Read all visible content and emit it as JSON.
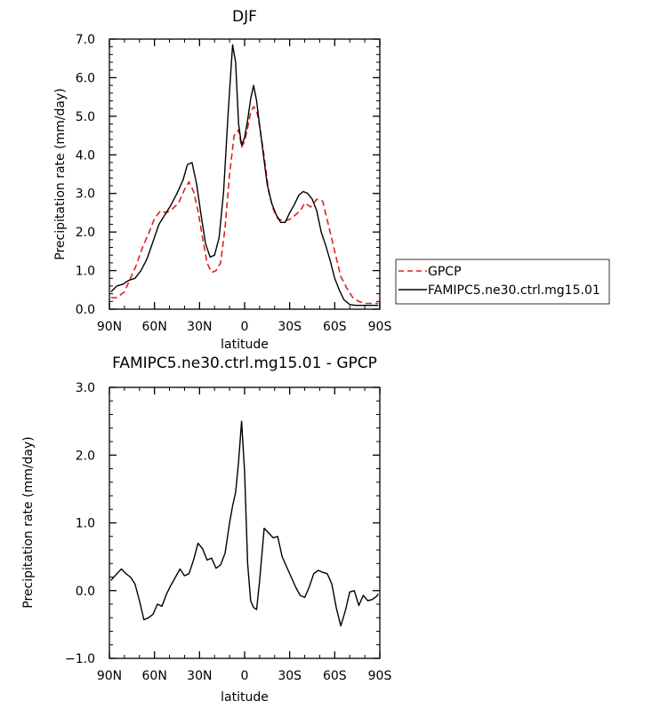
{
  "chart_data": [
    {
      "type": "line",
      "title": "DJF",
      "xlabel": "latitude",
      "ylabel": "Precipitation rate (mm/day)",
      "xlim": [
        90,
        -90
      ],
      "ylim": [
        0,
        7
      ],
      "x_ticks": [
        90,
        60,
        30,
        0,
        -30,
        -60,
        -90
      ],
      "x_tick_labels": [
        "90N",
        "60N",
        "30N",
        "0",
        "30S",
        "60S",
        "90S"
      ],
      "y_ticks": [
        0,
        1,
        2,
        3,
        4,
        5,
        6,
        7
      ],
      "y_tick_labels": [
        "0.0",
        "1.0",
        "2.0",
        "3.0",
        "4.0",
        "5.0",
        "6.0",
        "7.0"
      ],
      "legend_position": "right",
      "series": [
        {
          "name": "GPCP",
          "color": "#e02020",
          "dash": "dashed",
          "x": [
            89,
            85,
            80,
            76,
            72,
            68,
            64,
            60,
            56,
            52,
            48,
            44,
            40,
            37,
            34,
            31,
            28,
            25,
            22,
            19,
            16,
            13,
            10,
            7,
            4,
            2,
            0,
            -2,
            -4,
            -6,
            -8,
            -10,
            -13,
            -16,
            -19,
            -22,
            -25,
            -28,
            -31,
            -34,
            -37,
            -40,
            -44,
            -48,
            -52,
            -56,
            -60,
            -64,
            -68,
            -72,
            -76,
            -80,
            -84,
            -89
          ],
          "values": [
            0.3,
            0.3,
            0.45,
            0.8,
            1.15,
            1.6,
            1.95,
            2.35,
            2.55,
            2.5,
            2.6,
            2.75,
            3.1,
            3.3,
            3.05,
            2.55,
            1.85,
            1.2,
            0.95,
            1.0,
            1.2,
            2.1,
            3.5,
            4.5,
            4.65,
            4.2,
            4.35,
            4.7,
            5.1,
            5.25,
            5.15,
            4.75,
            3.95,
            3.05,
            2.6,
            2.35,
            2.3,
            2.3,
            2.35,
            2.45,
            2.55,
            2.75,
            2.65,
            2.85,
            2.8,
            2.15,
            1.5,
            0.85,
            0.55,
            0.3,
            0.2,
            0.15,
            0.15,
            0.15
          ]
        },
        {
          "name": "FAMIPC5.ne30.ctrl.mg15.01",
          "color": "#000000",
          "dash": "solid",
          "x": [
            89,
            85,
            81,
            77,
            73,
            69,
            65,
            61,
            57,
            53,
            49,
            45,
            41,
            38,
            35,
            32,
            29,
            26,
            23,
            20,
            17,
            14,
            11,
            8,
            6,
            4,
            2,
            0,
            -2,
            -4,
            -6,
            -8,
            -10,
            -12,
            -15,
            -18,
            -21,
            -24,
            -27,
            -30,
            -33,
            -36,
            -39,
            -42,
            -45,
            -48,
            -51,
            -54,
            -57,
            -60,
            -63,
            -66,
            -70,
            -74,
            -78,
            -82,
            -86,
            -89
          ],
          "values": [
            0.45,
            0.6,
            0.65,
            0.75,
            0.8,
            1.0,
            1.3,
            1.75,
            2.2,
            2.45,
            2.7,
            3.0,
            3.35,
            3.75,
            3.8,
            3.25,
            2.45,
            1.7,
            1.35,
            1.4,
            1.85,
            3.05,
            5.05,
            6.85,
            6.4,
            4.8,
            4.25,
            4.45,
            4.9,
            5.45,
            5.8,
            5.4,
            4.75,
            4.15,
            3.25,
            2.75,
            2.45,
            2.25,
            2.25,
            2.5,
            2.7,
            2.95,
            3.05,
            3.0,
            2.85,
            2.55,
            2.0,
            1.65,
            1.25,
            0.8,
            0.5,
            0.25,
            0.12,
            0.1,
            0.1,
            0.1,
            0.1,
            0.1
          ]
        }
      ]
    },
    {
      "type": "line",
      "title": "FAMIPC5.ne30.ctrl.mg15.01 - GPCP",
      "xlabel": "latitude",
      "ylabel": "Precipitation rate (mm/day)",
      "xlim": [
        90,
        -90
      ],
      "ylim": [
        -1,
        3
      ],
      "x_ticks": [
        90,
        60,
        30,
        0,
        -30,
        -60,
        -90
      ],
      "x_tick_labels": [
        "90N",
        "60N",
        "30N",
        "0",
        "30S",
        "60S",
        "90S"
      ],
      "y_ticks": [
        -1,
        0,
        1,
        2,
        3
      ],
      "y_tick_labels": [
        "−1.0",
        "0.0",
        "1.0",
        "2.0",
        "3.0"
      ],
      "series": [
        {
          "color": "#000000",
          "dash": "solid",
          "x": [
            89,
            85,
            82,
            79,
            76,
            73,
            70,
            67,
            64,
            61,
            58,
            55,
            52,
            49,
            46,
            43,
            40,
            37,
            34,
            31,
            28,
            25,
            22,
            19,
            16,
            13,
            10,
            8,
            6,
            4,
            2,
            0,
            -2,
            -4,
            -6,
            -8,
            -10,
            -13,
            -16,
            -19,
            -22,
            -25,
            -28,
            -31,
            -34,
            -37,
            -40,
            -43,
            -46,
            -49,
            -52,
            -55,
            -58,
            -61,
            -64,
            -67,
            -70,
            -73,
            -76,
            -79,
            -82,
            -85,
            -88,
            -89
          ],
          "values": [
            0.15,
            0.25,
            0.32,
            0.25,
            0.2,
            0.1,
            -0.15,
            -0.43,
            -0.4,
            -0.35,
            -0.2,
            -0.23,
            -0.05,
            0.08,
            0.2,
            0.32,
            0.22,
            0.25,
            0.45,
            0.7,
            0.62,
            0.45,
            0.48,
            0.33,
            0.38,
            0.55,
            1.0,
            1.25,
            1.45,
            1.9,
            2.5,
            1.75,
            0.4,
            -0.15,
            -0.25,
            -0.28,
            0.15,
            0.92,
            0.85,
            0.78,
            0.8,
            0.5,
            0.35,
            0.2,
            0.05,
            -0.07,
            -0.1,
            0.05,
            0.25,
            0.3,
            0.27,
            0.25,
            0.1,
            -0.25,
            -0.52,
            -0.3,
            -0.02,
            0.0,
            -0.22,
            -0.07,
            -0.15,
            -0.13,
            -0.08,
            -0.05
          ]
        }
      ]
    }
  ]
}
